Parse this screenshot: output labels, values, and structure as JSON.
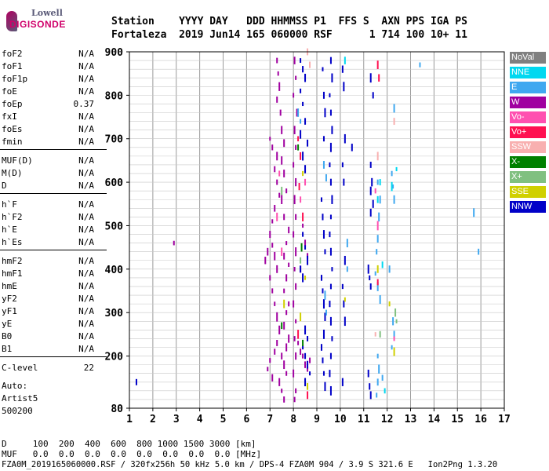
{
  "logo": {
    "line1": "Lowell",
    "line2": "DIGISONDE"
  },
  "header": {
    "row1": "Station    YYYY DAY   DDD HHMMSS P1  FFS S  AXN PPS IGA PS",
    "row2": "Fortaleza  2019 Jun14 165 060000 RSF      1 714 100 10+ 11"
  },
  "params": [
    {
      "label": "foF2",
      "value": "N/A"
    },
    {
      "label": "foF1",
      "value": "N/A"
    },
    {
      "label": "foF1p",
      "value": "N/A"
    },
    {
      "label": "foE",
      "value": "N/A"
    },
    {
      "label": "foEp",
      "value": "0.37"
    },
    {
      "label": "fxI",
      "value": "N/A"
    },
    {
      "label": "foEs",
      "value": "N/A"
    },
    {
      "label": "fmin",
      "value": "N/A"
    },
    {
      "label": "MUF(D)",
      "value": "N/A"
    },
    {
      "label": "M(D)",
      "value": "N/A"
    },
    {
      "label": "D",
      "value": "N/A"
    },
    {
      "label": "h`F",
      "value": "N/A"
    },
    {
      "label": "h`F2",
      "value": "N/A"
    },
    {
      "label": "h`E",
      "value": "N/A"
    },
    {
      "label": "h`Es",
      "value": "N/A"
    },
    {
      "label": "hmF2",
      "value": "N/A"
    },
    {
      "label": "hmF1",
      "value": "N/A"
    },
    {
      "label": "hmE",
      "value": "N/A"
    },
    {
      "label": "yF2",
      "value": "N/A"
    },
    {
      "label": "yF1",
      "value": "N/A"
    },
    {
      "label": "yE",
      "value": "N/A"
    },
    {
      "label": "B0",
      "value": "N/A"
    },
    {
      "label": "B1",
      "value": "N/A"
    },
    {
      "label": "C-level",
      "value": "22"
    }
  ],
  "auto": {
    "line1": "Auto:",
    "line2": "Artist5",
    "line3": "500200"
  },
  "legend": [
    {
      "label": "NoVal",
      "color": "#808080"
    },
    {
      "label": "NNE",
      "color": "#00d8f0"
    },
    {
      "label": "E",
      "color": "#40a8f0"
    },
    {
      "label": "W",
      "color": "#a000a0"
    },
    {
      "label": "Vo-",
      "color": "#ff50b0"
    },
    {
      "label": "Vo+",
      "color": "#ff1050"
    },
    {
      "label": "SSW",
      "color": "#f8b0b0"
    },
    {
      "label": "X-",
      "color": "#008000"
    },
    {
      "label": "X+",
      "color": "#80c080"
    },
    {
      "label": "SSE",
      "color": "#d0d000"
    },
    {
      "label": "NNW",
      "color": "#0000c8"
    }
  ],
  "footer": {
    "row1": "D     100  200  400  600  800 1000 1500 3000 [km]",
    "row2": "MUF   0.0  0.0  0.0  0.0  0.0  0.0  0.0  0.0 [MHz]",
    "row3": "FZA0M_2019165060000.RSF / 320fx256h 50 kHz 5.0 km / DPS-4 FZA0M 904 / 3.9 S 321.6 E   Ion2Png 1.3.20"
  },
  "chart_data": {
    "type": "scatter",
    "title": "",
    "xlabel": "",
    "ylabel": "",
    "xlim": [
      1,
      17
    ],
    "ylim": [
      80,
      900
    ],
    "x_ticks": [
      1,
      2,
      3,
      4,
      5,
      6,
      7,
      8,
      9,
      10,
      11,
      12,
      13,
      14,
      15,
      16,
      17
    ],
    "y_ticks": [
      80,
      200,
      300,
      400,
      500,
      600,
      700,
      800,
      900
    ],
    "grid": true,
    "series": [
      {
        "color": "#a000a0",
        "points": [
          [
            7.0,
            700
          ],
          [
            7.1,
            680
          ],
          [
            7.3,
            660
          ],
          [
            7.2,
            630
          ],
          [
            7.3,
            600
          ],
          [
            7.4,
            570
          ],
          [
            7.2,
            540
          ],
          [
            7.1,
            510
          ],
          [
            7.0,
            480
          ],
          [
            7.1,
            455
          ],
          [
            7.2,
            430
          ],
          [
            7.3,
            400
          ],
          [
            6.9,
            440
          ],
          [
            6.8,
            420
          ],
          [
            7.0,
            380
          ],
          [
            7.1,
            350
          ],
          [
            7.2,
            320
          ],
          [
            7.3,
            290
          ],
          [
            7.4,
            260
          ],
          [
            7.3,
            230
          ],
          [
            7.2,
            210
          ],
          [
            7.0,
            190
          ],
          [
            6.9,
            170
          ],
          [
            7.1,
            150
          ],
          [
            7.3,
            880
          ],
          [
            7.35,
            850
          ],
          [
            7.4,
            820
          ],
          [
            7.3,
            790
          ],
          [
            7.45,
            760
          ],
          [
            7.5,
            720
          ],
          [
            7.6,
            690
          ],
          [
            7.5,
            650
          ],
          [
            7.6,
            620
          ],
          [
            7.7,
            580
          ],
          [
            7.5,
            560
          ],
          [
            7.6,
            520
          ],
          [
            7.8,
            490
          ],
          [
            7.7,
            460
          ],
          [
            7.6,
            430
          ],
          [
            7.8,
            410
          ],
          [
            7.7,
            380
          ],
          [
            7.6,
            350
          ],
          [
            7.8,
            320
          ],
          [
            7.7,
            300
          ],
          [
            7.6,
            270
          ],
          [
            7.8,
            240
          ],
          [
            7.7,
            220
          ],
          [
            7.5,
            200
          ],
          [
            7.6,
            180
          ],
          [
            7.7,
            160
          ],
          [
            7.4,
            140
          ],
          [
            7.5,
            120
          ],
          [
            7.6,
            100
          ],
          [
            8.05,
            880
          ],
          [
            8.1,
            840
          ],
          [
            8.0,
            800
          ],
          [
            8.15,
            760
          ],
          [
            8.05,
            720
          ],
          [
            8.1,
            680
          ],
          [
            8.0,
            640
          ],
          [
            8.1,
            600
          ],
          [
            8.05,
            560
          ],
          [
            8.1,
            520
          ],
          [
            8.0,
            480
          ],
          [
            8.1,
            440
          ],
          [
            8.05,
            400
          ],
          [
            8.1,
            360
          ],
          [
            8.0,
            320
          ],
          [
            8.1,
            280
          ],
          [
            8.05,
            240
          ],
          [
            8.1,
            200
          ],
          [
            8.0,
            160
          ],
          [
            8.1,
            120
          ],
          [
            8.05,
            100
          ],
          [
            8.4,
            500
          ],
          [
            8.5,
            460
          ],
          [
            8.6,
            430
          ],
          [
            8.3,
            400
          ],
          [
            8.4,
            200
          ],
          [
            8.5,
            180
          ],
          [
            8.6,
            170
          ],
          [
            8.3,
            210
          ],
          [
            8.7,
            190
          ],
          [
            8.2,
            230
          ],
          [
            2.9,
            460
          ]
        ]
      },
      {
        "color": "#0000c8",
        "points": [
          [
            8.3,
            880
          ],
          [
            8.4,
            860
          ],
          [
            8.5,
            840
          ],
          [
            8.3,
            810
          ],
          [
            8.4,
            780
          ],
          [
            8.5,
            740
          ],
          [
            8.3,
            710
          ],
          [
            8.6,
            690
          ],
          [
            8.4,
            660
          ],
          [
            8.5,
            630
          ],
          [
            8.4,
            480
          ],
          [
            8.5,
            450
          ],
          [
            8.6,
            420
          ],
          [
            8.3,
            400
          ],
          [
            8.4,
            380
          ],
          [
            8.5,
            260
          ],
          [
            8.6,
            240
          ],
          [
            8.4,
            220
          ],
          [
            8.5,
            200
          ],
          [
            8.6,
            180
          ],
          [
            8.7,
            160
          ],
          [
            8.5,
            140
          ],
          [
            9.25,
            860
          ],
          [
            9.3,
            800
          ],
          [
            9.35,
            760
          ],
          [
            9.3,
            700
          ],
          [
            9.2,
            560
          ],
          [
            9.25,
            520
          ],
          [
            9.3,
            480
          ],
          [
            9.35,
            440
          ],
          [
            9.2,
            380
          ],
          [
            9.25,
            350
          ],
          [
            9.3,
            320
          ],
          [
            9.35,
            290
          ],
          [
            9.3,
            250
          ],
          [
            9.2,
            220
          ],
          [
            9.25,
            190
          ],
          [
            9.3,
            160
          ],
          [
            9.35,
            130
          ],
          [
            9.6,
            880
          ],
          [
            9.65,
            840
          ],
          [
            9.55,
            800
          ],
          [
            9.6,
            760
          ],
          [
            9.65,
            720
          ],
          [
            9.6,
            680
          ],
          [
            9.55,
            640
          ],
          [
            9.6,
            600
          ],
          [
            9.65,
            560
          ],
          [
            9.6,
            520
          ],
          [
            9.55,
            480
          ],
          [
            9.6,
            440
          ],
          [
            9.65,
            400
          ],
          [
            9.6,
            360
          ],
          [
            9.55,
            320
          ],
          [
            9.6,
            280
          ],
          [
            9.65,
            240
          ],
          [
            9.6,
            200
          ],
          [
            9.55,
            160
          ],
          [
            9.6,
            120
          ],
          [
            10.1,
            860
          ],
          [
            10.15,
            820
          ],
          [
            10.2,
            700
          ],
          [
            10.1,
            640
          ],
          [
            10.15,
            600
          ],
          [
            10.2,
            420
          ],
          [
            10.1,
            360
          ],
          [
            10.15,
            320
          ],
          [
            10.2,
            280
          ],
          [
            10.1,
            140
          ],
          [
            10.5,
            680
          ],
          [
            11.3,
            840
          ],
          [
            11.4,
            800
          ],
          [
            11.3,
            640
          ],
          [
            11.35,
            600
          ],
          [
            11.3,
            580
          ],
          [
            11.4,
            550
          ],
          [
            11.3,
            530
          ],
          [
            11.2,
            400
          ],
          [
            11.25,
            380
          ],
          [
            11.3,
            360
          ],
          [
            11.2,
            160
          ],
          [
            11.25,
            130
          ],
          [
            11.3,
            110
          ],
          [
            1.3,
            140
          ]
        ]
      },
      {
        "color": "#40a8f0",
        "points": [
          [
            8.3,
            740
          ],
          [
            8.2,
            760
          ],
          [
            9.3,
            640
          ],
          [
            9.4,
            610
          ],
          [
            9.35,
            340
          ],
          [
            9.4,
            300
          ],
          [
            10.3,
            460
          ],
          [
            10.3,
            400
          ],
          [
            11.6,
            600
          ],
          [
            11.7,
            560
          ],
          [
            11.65,
            520
          ],
          [
            11.6,
            470
          ],
          [
            11.55,
            440
          ],
          [
            11.5,
            390
          ],
          [
            11.6,
            360
          ],
          [
            11.7,
            330
          ],
          [
            11.6,
            200
          ],
          [
            11.65,
            170
          ],
          [
            11.6,
            140
          ],
          [
            11.55,
            110
          ],
          [
            12.2,
            620
          ],
          [
            12.25,
            590
          ],
          [
            12.3,
            560
          ],
          [
            12.25,
            280
          ],
          [
            12.3,
            250
          ],
          [
            12.2,
            220
          ],
          [
            12.3,
            770
          ],
          [
            13.4,
            870
          ],
          [
            15.7,
            530
          ],
          [
            15.9,
            440
          ],
          [
            12.1,
            400
          ],
          [
            11.8,
            150
          ]
        ]
      },
      {
        "color": "#00d8f0",
        "points": [
          [
            10.2,
            880
          ],
          [
            11.7,
            600
          ],
          [
            12.4,
            630
          ],
          [
            11.6,
            560
          ],
          [
            12.2,
            590
          ],
          [
            11.8,
            410
          ],
          [
            11.9,
            120
          ]
        ]
      },
      {
        "color": "#ff1050",
        "points": [
          [
            8.2,
            700
          ],
          [
            8.3,
            660
          ],
          [
            8.25,
            590
          ],
          [
            11.6,
            870
          ],
          [
            11.65,
            840
          ],
          [
            8.4,
            520
          ],
          [
            8.2,
            250
          ],
          [
            11.6,
            370
          ],
          [
            8.6,
            110
          ]
        ]
      },
      {
        "color": "#ff50b0",
        "points": [
          [
            7.4,
            620
          ],
          [
            7.3,
            520
          ],
          [
            7.5,
            440
          ],
          [
            8.5,
            600
          ],
          [
            8.3,
            560
          ],
          [
            11.6,
            500
          ],
          [
            12.3,
            240
          ],
          [
            11.5,
            580
          ]
        ]
      },
      {
        "color": "#d0d000",
        "points": [
          [
            8.4,
            620
          ],
          [
            8.5,
            380
          ],
          [
            7.6,
            320
          ],
          [
            8.3,
            290
          ],
          [
            10.2,
            330
          ],
          [
            12.1,
            320
          ],
          [
            12.3,
            210
          ],
          [
            11.6,
            400
          ],
          [
            8.6,
            130
          ]
        ]
      },
      {
        "color": "#008000",
        "points": [
          [
            8.2,
            680
          ],
          [
            8.35,
            450
          ],
          [
            7.5,
            270
          ],
          [
            8.4,
            230
          ]
        ]
      },
      {
        "color": "#80c080",
        "points": [
          [
            7.5,
            580
          ],
          [
            8.3,
            420
          ],
          [
            11.7,
            250
          ],
          [
            12.35,
            300
          ],
          [
            12.4,
            280
          ]
        ]
      },
      {
        "color": "#f8b0b0",
        "points": [
          [
            8.6,
            900
          ],
          [
            8.7,
            870
          ],
          [
            11.6,
            660
          ],
          [
            12.3,
            740
          ],
          [
            11.5,
            250
          ]
        ]
      }
    ]
  }
}
